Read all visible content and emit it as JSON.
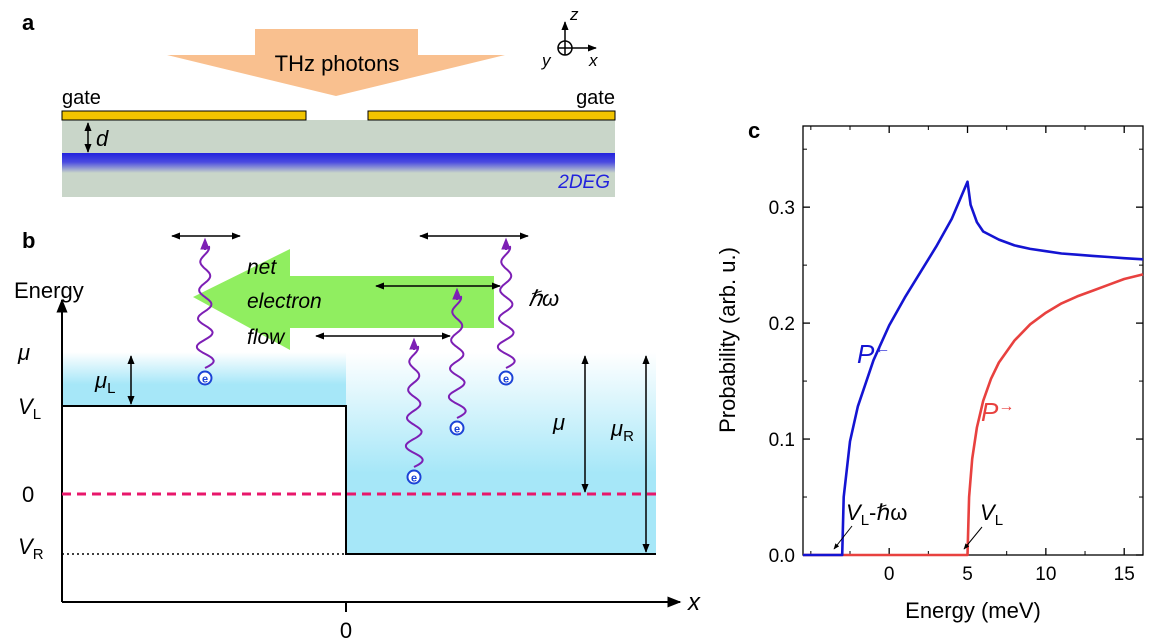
{
  "panel_a": {
    "label": "a",
    "photon_label": "THz photons",
    "gate_left_label": "gate",
    "gate_right_label": "gate",
    "thickness_label": "d",
    "twodeg_label": "2DEG",
    "axes": {
      "z": "z",
      "x": "x",
      "y": "y"
    },
    "colors": {
      "gate": "#f2c400",
      "substrate": "#c9d6c9",
      "twodeg": "#2a2ad8",
      "photon_arrow": "#f9c08f"
    }
  },
  "panel_b": {
    "label": "b",
    "y_axis_label": "Energy",
    "x_axis_label": "x",
    "x_tick_zero": "0",
    "level_mu": "μ",
    "level_VL": {
      "main": "V",
      "sub": "L"
    },
    "level_zero": "0",
    "level_VR": {
      "main": "V",
      "sub": "R"
    },
    "mu_L": {
      "main": "μ",
      "sub": "L"
    },
    "mu_inner": "μ",
    "mu_R": {
      "main": "μ",
      "sub": "R"
    },
    "hbar_omega": "ℏω",
    "flow_text": [
      "net",
      "electron",
      "flow"
    ],
    "electron_symbol": "e",
    "colors": {
      "fermi_sea": "#a6e7f8",
      "flow_arrow": "#90ee60",
      "zero_line": "#e8176b",
      "wavy": "#7d1fb5",
      "electron": "#1c43d6"
    }
  },
  "chart_data": {
    "type": "line",
    "panel_label": "c",
    "xlabel": "Energy (meV)",
    "ylabel": "Probability (arb. u.)",
    "xlim": [
      -5.5,
      16.2
    ],
    "ylim": [
      0,
      0.37
    ],
    "xticks": [
      0,
      5,
      10,
      15
    ],
    "xtick_labels": [
      "0",
      "5",
      "10",
      "15"
    ],
    "yticks": [
      0.0,
      0.1,
      0.2,
      0.3
    ],
    "ytick_labels": [
      "0.0",
      "0.1",
      "0.2",
      "0.3"
    ],
    "series": [
      {
        "name": "P←",
        "label_main": "P",
        "label_arrow": "←",
        "color": "#1414d2",
        "x": [
          -5.5,
          -3.0,
          -2.9,
          -2.5,
          -2,
          -1,
          0,
          1,
          2,
          3,
          4,
          5,
          5.2,
          5.6,
          6,
          7,
          8,
          9,
          10,
          11,
          12,
          13,
          14,
          15,
          16.2
        ],
        "y": [
          0,
          0,
          0.05,
          0.098,
          0.128,
          0.168,
          0.198,
          0.222,
          0.244,
          0.266,
          0.29,
          0.322,
          0.302,
          0.287,
          0.279,
          0.272,
          0.267,
          0.264,
          0.262,
          0.26,
          0.259,
          0.258,
          0.257,
          0.256,
          0.255
        ]
      },
      {
        "name": "P→",
        "label_main": "P",
        "label_arrow": "→",
        "color": "#e8413f",
        "x": [
          -5.5,
          5.0,
          5.1,
          5.3,
          5.6,
          6,
          6.5,
          7,
          8,
          9,
          10,
          11,
          12,
          13,
          14,
          15,
          16.2
        ],
        "y": [
          0,
          0,
          0.05,
          0.083,
          0.11,
          0.133,
          0.152,
          0.166,
          0.185,
          0.199,
          0.209,
          0.217,
          0.223,
          0.228,
          0.233,
          0.238,
          0.242
        ]
      }
    ],
    "annotations": [
      {
        "text_main": "V",
        "text_sub": "L",
        "text_rest": "-ℏω",
        "points_to_x": -3.0
      },
      {
        "text_main": "V",
        "text_sub": "L",
        "text_rest": "",
        "points_to_x": 5.0
      }
    ]
  }
}
